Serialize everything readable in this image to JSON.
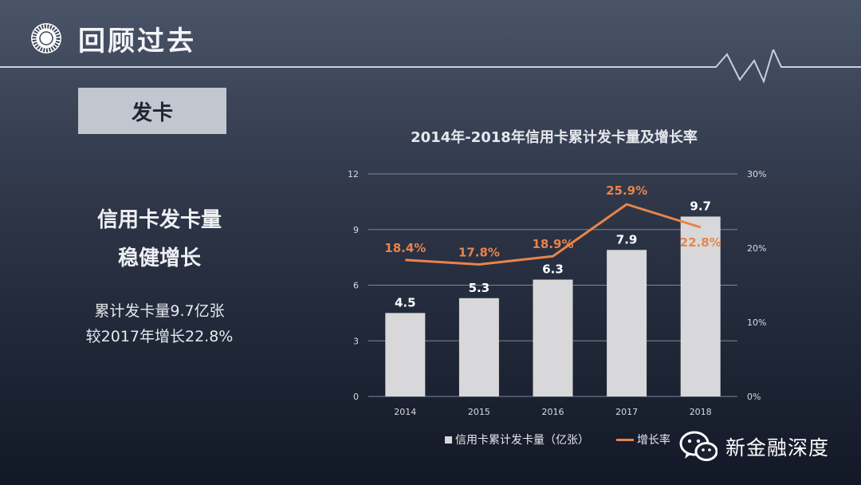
{
  "header": {
    "title": "回顾过去"
  },
  "section": {
    "label": "发卡"
  },
  "summary": {
    "headline_line1": "信用卡发卡量",
    "headline_line2": "稳健增长",
    "detail_line1": "累计发卡量9.7亿张",
    "detail_line2": "较2017年增长22.8%"
  },
  "brand": {
    "name": "新金融深度"
  },
  "colors": {
    "bar": "#d8d8da",
    "line": "#e8844a",
    "bar_label": "#ffffff",
    "line_label": "#e8844a"
  },
  "chart_data": {
    "type": "bar",
    "title": "2014年-2018年信用卡累计发卡量及增长率",
    "categories": [
      "2014",
      "2015",
      "2016",
      "2017",
      "2018"
    ],
    "series": [
      {
        "name": "信用卡累计发卡量（亿张）",
        "type": "bar",
        "axis": "left",
        "values": [
          4.5,
          5.3,
          6.3,
          7.9,
          9.7
        ],
        "labels": [
          "4.5",
          "5.3",
          "6.3",
          "7.9",
          "9.7"
        ]
      },
      {
        "name": "增长率",
        "type": "line",
        "axis": "right",
        "values": [
          18.4,
          17.8,
          18.9,
          25.9,
          22.8
        ],
        "labels": [
          "18.4%",
          "17.8%",
          "18.9%",
          "25.9%",
          "22.8%"
        ]
      }
    ],
    "y_left": {
      "range": [
        0,
        12
      ],
      "ticks": [
        "0",
        "3",
        "6",
        "9",
        "12"
      ]
    },
    "y_right": {
      "range": [
        0,
        30
      ],
      "ticks": [
        "0%",
        "10%",
        "20%",
        "30%"
      ]
    },
    "grid": true,
    "legend_position": "bottom"
  }
}
